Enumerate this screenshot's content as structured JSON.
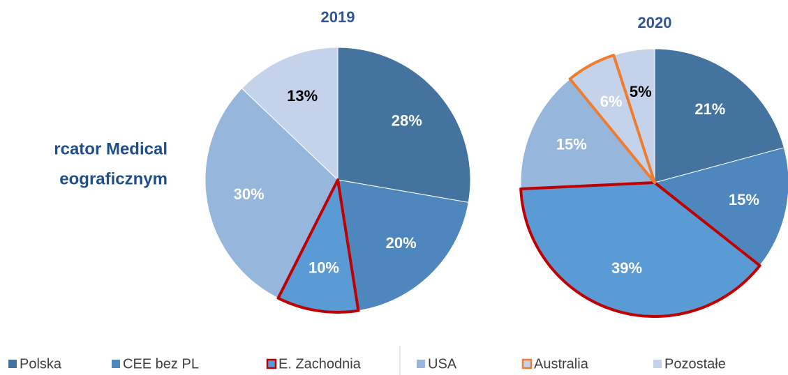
{
  "annotations": [
    "rcator Medical",
    "eograficznym"
  ],
  "legend": {
    "entries": [
      {
        "name": "Polska",
        "color": "#44739f",
        "label_color": "#ffffff"
      },
      {
        "name": "CEE bez PL",
        "color": "#4d87bd",
        "label_color": "#ffffff"
      },
      {
        "name": "E. Zachodnia",
        "color": "#5b9bd5",
        "outline": "#c00000",
        "label_color": "#ffffff"
      },
      {
        "name": "USA",
        "color": "#97b6dc",
        "label_color": "#ffffff"
      },
      {
        "name": "Australia",
        "color": "#c5d3ea",
        "outline": "#ed7d31",
        "label_color": "#ffffff"
      },
      {
        "name": "Pozostałe",
        "color": "#c5d3ea",
        "label_color": "#000000"
      }
    ]
  },
  "chart_data": [
    {
      "type": "pie",
      "title": "2019",
      "values": [
        28,
        20,
        10,
        30,
        null,
        13
      ],
      "value_labels": [
        "28%",
        "20%",
        "10%",
        "30%",
        null,
        "13%"
      ]
    },
    {
      "type": "pie",
      "title": "2020",
      "values": [
        21,
        15,
        39,
        15,
        6,
        5
      ],
      "value_labels": [
        "21%",
        "15%",
        "39%",
        "15%",
        "6%",
        "5%"
      ]
    }
  ]
}
